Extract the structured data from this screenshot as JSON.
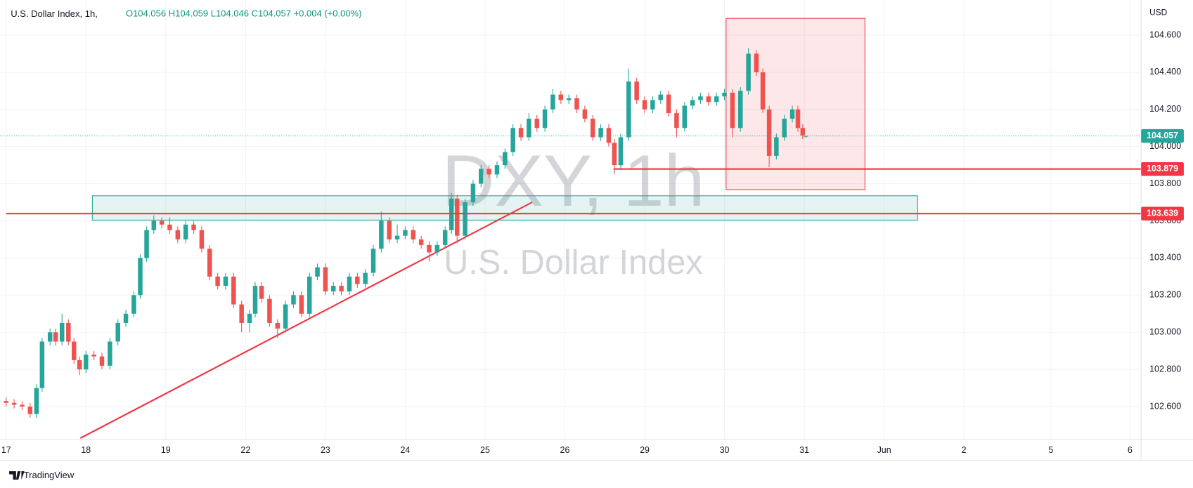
{
  "chart_data": {
    "type": "candlestick",
    "title": "U.S. Dollar Index, 1h,",
    "ohlc_text": [
      "O104.056",
      "H104.059",
      "L104.046",
      "C104.057",
      "+0.004 (+0.00%)"
    ],
    "watermark": "DXY, 1h",
    "watermark_subtitle": "U.S. Dollar Index",
    "currency": "USD",
    "branding": "TradingView",
    "up_color": "#26a69a",
    "down_color": "#ef5350",
    "grid": true,
    "x": [
      0.0,
      0.1,
      0.2,
      0.3,
      0.38,
      0.45,
      0.55,
      0.62,
      0.7,
      0.78,
      0.85,
      0.92,
      1.0,
      1.1,
      1.2,
      1.3,
      1.4,
      1.5,
      1.6,
      1.68,
      1.76,
      1.85,
      1.95,
      2.05,
      2.15,
      2.25,
      2.35,
      2.45,
      2.55,
      2.65,
      2.75,
      2.85,
      2.95,
      3.05,
      3.12,
      3.2,
      3.3,
      3.4,
      3.5,
      3.6,
      3.7,
      3.8,
      3.9,
      4.0,
      4.1,
      4.2,
      4.3,
      4.4,
      4.5,
      4.6,
      4.7,
      4.8,
      4.9,
      5.0,
      5.1,
      5.2,
      5.3,
      5.4,
      5.5,
      5.58,
      5.65,
      5.75,
      5.85,
      5.95,
      6.05,
      6.15,
      6.25,
      6.35,
      6.45,
      6.55,
      6.65,
      6.75,
      6.85,
      6.95,
      7.05,
      7.15,
      7.25,
      7.35,
      7.45,
      7.55,
      7.62,
      7.7,
      7.8,
      7.9,
      8.0,
      8.1,
      8.2,
      8.3,
      8.4,
      8.5,
      8.6,
      8.7,
      8.8,
      8.9,
      9.0,
      9.1,
      9.2,
      9.3,
      9.4,
      9.48,
      9.56,
      9.65,
      9.75,
      9.85,
      9.92,
      9.98,
      10.02
    ],
    "open": [
      102.63,
      102.62,
      102.61,
      102.6,
      102.56,
      102.7,
      102.95,
      103.0,
      102.95,
      103.05,
      102.95,
      102.85,
      102.8,
      102.88,
      102.87,
      102.82,
      102.95,
      103.05,
      103.1,
      103.2,
      103.4,
      103.55,
      103.6,
      103.58,
      103.55,
      103.5,
      103.58,
      103.55,
      103.45,
      103.3,
      103.25,
      103.3,
      103.15,
      103.05,
      103.1,
      103.25,
      103.18,
      103.05,
      103.02,
      103.15,
      103.2,
      103.1,
      103.3,
      103.35,
      103.22,
      103.25,
      103.22,
      103.3,
      103.26,
      103.32,
      103.45,
      103.6,
      103.5,
      103.52,
      103.55,
      103.5,
      103.47,
      103.43,
      103.47,
      103.55,
      103.72,
      103.52,
      103.7,
      103.8,
      103.88,
      103.85,
      103.9,
      103.97,
      104.1,
      104.05,
      104.15,
      104.1,
      104.2,
      104.28,
      104.25,
      104.26,
      104.2,
      104.15,
      104.05,
      104.1,
      104.02,
      103.9,
      104.05,
      104.35,
      104.25,
      104.2,
      104.25,
      104.28,
      104.18,
      104.1,
      104.22,
      104.25,
      104.27,
      104.24,
      104.27,
      104.29,
      104.1,
      104.3,
      104.5,
      104.4,
      104.2,
      103.95,
      104.05,
      104.15,
      104.2,
      104.1,
      104.056
    ],
    "high": [
      102.65,
      102.64,
      102.63,
      102.62,
      102.72,
      102.97,
      103.02,
      103.02,
      103.1,
      103.07,
      102.97,
      102.87,
      102.9,
      102.9,
      102.89,
      102.97,
      103.07,
      103.12,
      103.22,
      103.42,
      103.57,
      103.63,
      103.62,
      103.62,
      103.57,
      103.6,
      103.6,
      103.57,
      103.47,
      103.32,
      103.32,
      103.32,
      103.17,
      103.12,
      103.27,
      103.27,
      103.2,
      103.07,
      103.17,
      103.22,
      103.22,
      103.32,
      103.37,
      103.37,
      103.27,
      103.27,
      103.32,
      103.32,
      103.34,
      103.47,
      103.65,
      103.62,
      103.58,
      103.57,
      103.57,
      103.52,
      103.49,
      103.49,
      103.57,
      103.75,
      103.74,
      103.72,
      103.82,
      103.9,
      103.9,
      103.92,
      103.99,
      104.12,
      104.12,
      104.18,
      104.17,
      104.22,
      104.31,
      104.3,
      104.28,
      104.28,
      104.22,
      104.17,
      104.12,
      104.12,
      104.04,
      104.07,
      104.42,
      104.37,
      104.27,
      104.27,
      104.3,
      104.3,
      104.2,
      104.24,
      104.27,
      104.29,
      104.29,
      104.29,
      104.31,
      104.31,
      104.32,
      104.53,
      104.52,
      104.42,
      104.22,
      104.07,
      104.17,
      104.22,
      104.22,
      104.12,
      104.059
    ],
    "low": [
      102.6,
      102.59,
      102.58,
      102.54,
      102.54,
      102.68,
      102.93,
      102.93,
      102.93,
      102.93,
      102.83,
      102.77,
      102.78,
      102.85,
      102.8,
      102.8,
      102.93,
      103.03,
      103.08,
      103.18,
      103.38,
      103.53,
      103.56,
      103.53,
      103.48,
      103.48,
      103.53,
      103.43,
      103.28,
      103.23,
      103.23,
      103.13,
      103.0,
      103.0,
      103.08,
      103.16,
      103.03,
      102.97,
      103.0,
      103.13,
      103.08,
      103.08,
      103.28,
      103.2,
      103.2,
      103.2,
      103.2,
      103.24,
      103.24,
      103.3,
      103.43,
      103.48,
      103.48,
      103.5,
      103.48,
      103.45,
      103.38,
      103.41,
      103.45,
      103.53,
      103.48,
      103.5,
      103.68,
      103.78,
      103.83,
      103.83,
      103.88,
      103.95,
      104.03,
      104.03,
      104.08,
      104.08,
      104.18,
      104.23,
      104.23,
      104.18,
      104.13,
      104.03,
      104.03,
      104.0,
      103.85,
      103.88,
      104.03,
      104.23,
      104.18,
      104.18,
      104.23,
      104.16,
      104.05,
      104.08,
      104.2,
      104.23,
      104.22,
      104.22,
      104.25,
      104.05,
      104.08,
      104.28,
      104.38,
      104.18,
      103.89,
      103.93,
      104.03,
      104.13,
      104.08,
      104.04,
      104.046
    ],
    "close": [
      102.62,
      102.61,
      102.6,
      102.56,
      102.7,
      102.95,
      103.0,
      102.95,
      103.05,
      102.95,
      102.85,
      102.8,
      102.88,
      102.87,
      102.82,
      102.95,
      103.05,
      103.1,
      103.2,
      103.4,
      103.55,
      103.6,
      103.58,
      103.55,
      103.5,
      103.58,
      103.55,
      103.45,
      103.3,
      103.25,
      103.3,
      103.15,
      103.05,
      103.1,
      103.25,
      103.18,
      103.05,
      103.02,
      103.15,
      103.2,
      103.1,
      103.3,
      103.35,
      103.22,
      103.25,
      103.22,
      103.3,
      103.26,
      103.32,
      103.45,
      103.6,
      103.5,
      103.52,
      103.55,
      103.5,
      103.47,
      103.43,
      103.47,
      103.55,
      103.72,
      103.52,
      103.7,
      103.8,
      103.88,
      103.85,
      103.9,
      103.97,
      104.1,
      104.05,
      104.15,
      104.1,
      104.2,
      104.28,
      104.25,
      104.26,
      104.2,
      104.15,
      104.05,
      104.1,
      104.02,
      103.9,
      104.05,
      104.35,
      104.25,
      104.2,
      104.25,
      104.28,
      104.18,
      104.1,
      104.22,
      104.25,
      104.27,
      104.24,
      104.27,
      104.29,
      104.1,
      104.3,
      104.5,
      104.4,
      104.2,
      103.95,
      104.05,
      104.15,
      104.2,
      104.1,
      104.06,
      104.057
    ],
    "xlim": [
      -0.0764,
      14.22
    ],
    "xticks": [
      {
        "value": 0,
        "label": "17"
      },
      {
        "value": 1,
        "label": "18"
      },
      {
        "value": 2,
        "label": "19"
      },
      {
        "value": 3,
        "label": "22"
      },
      {
        "value": 4,
        "label": "23"
      },
      {
        "value": 5,
        "label": "24"
      },
      {
        "value": 6,
        "label": "25"
      },
      {
        "value": 7,
        "label": "26"
      },
      {
        "value": 8,
        "label": "29"
      },
      {
        "value": 9,
        "label": "30"
      },
      {
        "value": 10,
        "label": "31"
      },
      {
        "value": 11,
        "label": "Jun"
      },
      {
        "value": 12,
        "label": "2"
      },
      {
        "value": 13.09,
        "label": "5"
      },
      {
        "value": 14.08,
        "label": "6"
      }
    ],
    "ylim": [
      102.424,
      104.789
    ],
    "yticks": [
      {
        "value": 102.6,
        "label": "102.600"
      },
      {
        "value": 102.8,
        "label": "102.800"
      },
      {
        "value": 103.0,
        "label": "103.000"
      },
      {
        "value": 103.2,
        "label": "103.200"
      },
      {
        "value": 103.4,
        "label": "103.400"
      },
      {
        "value": 103.6,
        "label": "103.600"
      },
      {
        "value": 103.8,
        "label": "103.800"
      },
      {
        "value": 104.0,
        "label": "104.000"
      },
      {
        "value": 104.2,
        "label": "104.200"
      },
      {
        "value": 104.4,
        "label": "104.400"
      },
      {
        "value": 104.6,
        "label": "104.600"
      }
    ],
    "zones": [
      {
        "x": [
          1.08,
          11.42
        ],
        "y": [
          103.604,
          103.735
        ],
        "color": "#26a69a"
      },
      {
        "x": [
          9.02,
          10.76
        ],
        "y": [
          103.768,
          104.69
        ],
        "color": "#f23645"
      }
    ],
    "trendline": {
      "x": [
        0.93,
        6.59
      ],
      "y": [
        102.43,
        103.7
      ],
      "color": "#f23645"
    },
    "price_lines": [
      {
        "value": 103.879,
        "from": 7.61,
        "color": "#f23645"
      },
      {
        "value": 103.639,
        "color": "#f23645"
      }
    ]
  }
}
